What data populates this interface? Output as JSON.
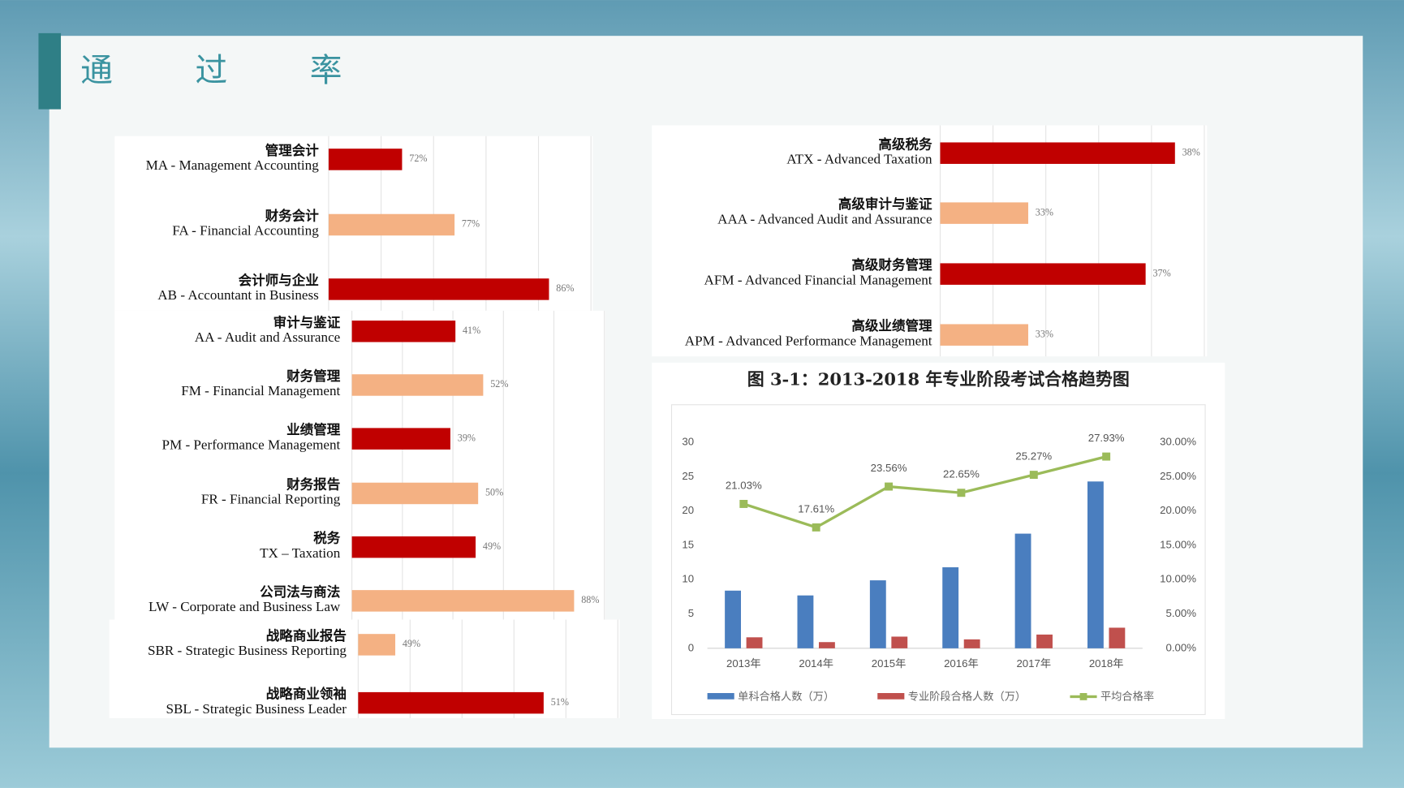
{
  "title": "通过率",
  "chart_data": [
    {
      "type": "barh",
      "category_names_zh": [
        "管理会计",
        "财务会计",
        "会计师与企业"
      ],
      "categories": [
        "MA - Management Accounting",
        "FA - Financial Accounting",
        "AB - Accountant in Business"
      ],
      "values": [
        72,
        77,
        86
      ],
      "value_labels": [
        "72%",
        "77%",
        "86%"
      ],
      "colors": [
        "#c00000",
        "#f4b183",
        "#c00000"
      ],
      "xlim": [
        65,
        90
      ],
      "grid": true
    },
    {
      "type": "barh",
      "category_names_zh": [
        "审计与鉴证",
        "财务管理",
        "业绩管理",
        "财务报告",
        "税务",
        "公司法与商法"
      ],
      "categories": [
        "AA - Audit and Assurance",
        "FM - Financial Management",
        "PM - Performance Management",
        "FR - Financial Reporting",
        "TX – Taxation",
        "LW - Corporate and Business Law"
      ],
      "values": [
        41,
        52,
        39,
        50,
        49,
        88
      ],
      "value_labels": [
        "41%",
        "52%",
        "39%",
        "50%",
        "49%",
        "88%"
      ],
      "colors": [
        "#c00000",
        "#f4b183",
        "#c00000",
        "#f4b183",
        "#c00000",
        "#f4b183"
      ],
      "xlim": [
        0,
        100
      ],
      "grid": true
    },
    {
      "type": "barh",
      "category_names_zh": [
        "战略商业报告",
        "战略商业领袖"
      ],
      "categories": [
        "SBR - Strategic Business Reporting",
        "SBL - Strategic Business Leader"
      ],
      "values": [
        49,
        51
      ],
      "value_labels": [
        "49%",
        "51%"
      ],
      "colors": [
        "#f4b183",
        "#c00000"
      ],
      "xlim": [
        48.5,
        52
      ],
      "grid": true
    },
    {
      "type": "barh",
      "category_names_zh": [
        "高级税务",
        "高级审计与鉴证",
        "高级财务管理",
        "高级业绩管理"
      ],
      "categories": [
        "ATX - Advanced Taxation",
        "AAA - Advanced Audit and Assurance",
        "AFM - Advanced Financial Management",
        "APM - Advanced Performance Management"
      ],
      "values": [
        38,
        33,
        37,
        33
      ],
      "value_labels": [
        "38%",
        "33%",
        "37%",
        "33%"
      ],
      "colors": [
        "#c00000",
        "#f4b183",
        "#c00000",
        "#f4b183"
      ],
      "xlim": [
        30,
        39
      ],
      "grid": true
    },
    {
      "type": "combo",
      "title": "图 3-1：2013-2018 年专业阶段考试合格趋势图",
      "categories": [
        "2013年",
        "2014年",
        "2015年",
        "2016年",
        "2017年",
        "2018年"
      ],
      "series": [
        {
          "name": "单科合格人数（万）",
          "color": "#4a7ebf",
          "kind": "bar",
          "values": [
            8.4,
            7.7,
            9.9,
            11.8,
            16.7,
            24.3
          ]
        },
        {
          "name": "专业阶段合格人数（万）",
          "color": "#c0504d",
          "kind": "bar",
          "values": [
            1.6,
            0.9,
            1.7,
            1.3,
            2.0,
            3.0
          ]
        },
        {
          "name": "平均合格率",
          "color": "#9bbb59",
          "kind": "line",
          "axis": "y2",
          "values": [
            21.03,
            17.61,
            23.56,
            22.65,
            25.27,
            27.93
          ],
          "value_labels": [
            "21.03%",
            "17.61%",
            "23.56%",
            "22.65%",
            "25.27%",
            "27.93%"
          ]
        }
      ],
      "ylim": [
        0,
        30
      ],
      "yticks": [
        0,
        5,
        10,
        15,
        20,
        25,
        30
      ],
      "y2lim": [
        0,
        30
      ],
      "y2ticks": [
        {
          "value": 0,
          "label": "0.00%"
        },
        {
          "value": 5,
          "label": "5.00%"
        },
        {
          "value": 10,
          "label": "10.00%"
        },
        {
          "value": 15,
          "label": "15.00%"
        },
        {
          "value": 20,
          "label": "20.00%"
        },
        {
          "value": 25,
          "label": "25.00%"
        },
        {
          "value": 30,
          "label": "30.00%"
        }
      ]
    }
  ]
}
